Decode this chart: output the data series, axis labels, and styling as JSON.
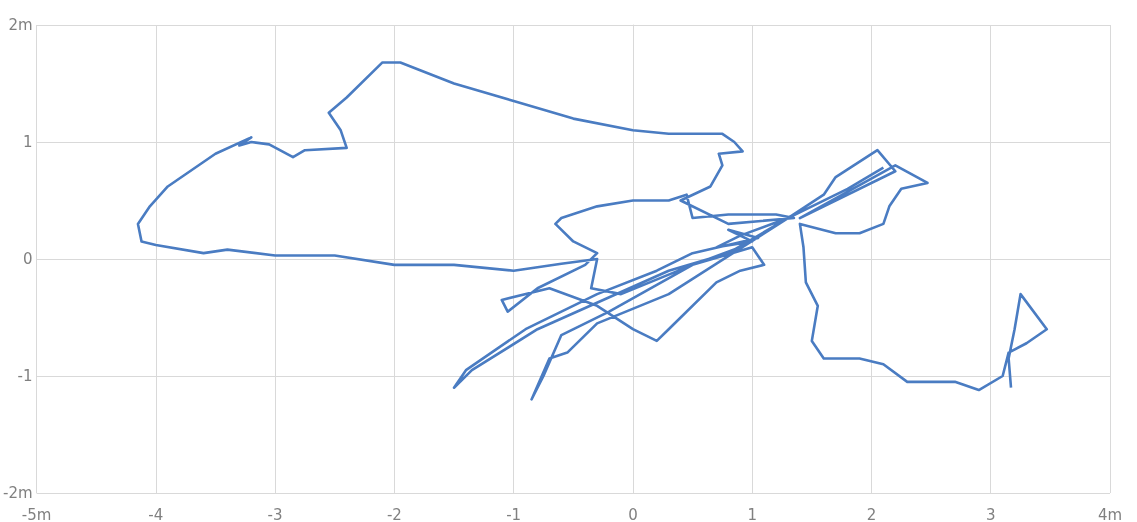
{
  "chart_data": {
    "type": "line",
    "grid": true,
    "xlim": [
      -5,
      4
    ],
    "ylim": [
      -2,
      2
    ],
    "xticks": [
      {
        "value": -5,
        "label": "-5m"
      },
      -4,
      -3,
      -2,
      -1,
      0,
      1,
      2,
      3,
      {
        "value": 4,
        "label": "4m"
      }
    ],
    "yticks": [
      {
        "value": -2,
        "label": "-2m"
      },
      -1,
      0,
      1,
      {
        "value": 2,
        "label": "2m"
      }
    ],
    "series": [
      {
        "color": "#4a7cc2",
        "x": [
          3.17,
          3.15,
          3.2,
          3.25,
          3.47,
          3.3,
          3.15,
          3.1,
          2.9,
          2.7,
          2.3,
          2.1,
          1.9,
          1.6,
          1.5,
          1.55,
          1.45,
          1.43,
          1.4,
          1.7,
          1.9,
          2.1,
          2.15,
          2.25,
          2.47,
          2.2,
          1.4,
          2.2,
          2.05,
          1.7,
          1.6,
          1.3,
          0.9,
          0.7,
          1.0,
          0.8,
          1.05,
          0.5,
          0.2,
          -0.3,
          -0.9,
          -1.4,
          -1.5,
          -1.35,
          -0.8,
          0.3,
          0.8,
          1.3,
          0.3,
          -0.3,
          -0.55,
          -0.7,
          -0.85,
          -0.75,
          -0.6,
          -0.2,
          0.5,
          1.0,
          1.1,
          0.9,
          0.7,
          0.3,
          0.2,
          0.0,
          -0.3,
          -0.7,
          -1.1,
          -1.05,
          -0.8,
          -0.4,
          -0.3,
          -0.5,
          -0.65,
          -0.6,
          -0.3,
          0.0,
          0.3,
          0.45,
          0.5,
          0.8,
          1.2,
          1.35,
          0.8,
          0.4,
          0.65,
          0.75,
          0.72,
          0.92,
          0.85,
          0.75,
          0.3,
          0.0,
          -0.5,
          -1.0,
          -1.5,
          -1.95,
          -2.1,
          -2.4,
          -2.55,
          -2.45,
          -2.4,
          -2.75,
          -2.85,
          -3.05,
          -3.2,
          -3.3,
          -3.2,
          -3.5,
          -3.9,
          -4.05,
          -4.15,
          -4.12,
          -4.0,
          -3.6,
          -3.4,
          -3.0,
          -2.5,
          -2.0,
          -1.5,
          -1.0,
          -0.6,
          -0.3,
          -0.35,
          -0.1,
          0.5,
          0.9,
          1.3,
          1.8,
          2.1
        ],
        "values": [
          -1.1,
          -0.85,
          -0.6,
          -0.3,
          -0.6,
          -0.72,
          -0.8,
          -1.0,
          -1.12,
          -1.05,
          -1.05,
          -0.9,
          -0.85,
          -0.85,
          -0.7,
          -0.4,
          -0.2,
          0.1,
          0.3,
          0.22,
          0.22,
          0.3,
          0.45,
          0.6,
          0.65,
          0.8,
          0.35,
          0.75,
          0.93,
          0.7,
          0.55,
          0.35,
          0.2,
          0.1,
          0.15,
          0.25,
          0.18,
          0.05,
          -0.1,
          -0.3,
          -0.6,
          -0.95,
          -1.1,
          -0.95,
          -0.6,
          -0.1,
          0.05,
          0.35,
          -0.3,
          -0.55,
          -0.8,
          -0.85,
          -1.2,
          -1.0,
          -0.65,
          -0.45,
          -0.05,
          0.1,
          -0.05,
          -0.1,
          -0.2,
          -0.6,
          -0.7,
          -0.6,
          -0.4,
          -0.25,
          -0.35,
          -0.45,
          -0.25,
          -0.05,
          0.05,
          0.15,
          0.3,
          0.35,
          0.45,
          0.5,
          0.5,
          0.55,
          0.35,
          0.38,
          0.38,
          0.35,
          0.3,
          0.5,
          0.62,
          0.8,
          0.9,
          0.92,
          1.0,
          1.07,
          1.07,
          1.1,
          1.2,
          1.35,
          1.5,
          1.68,
          1.68,
          1.38,
          1.25,
          1.1,
          0.95,
          0.93,
          0.87,
          0.98,
          1.0,
          0.97,
          1.04,
          0.9,
          0.62,
          0.45,
          0.3,
          0.15,
          0.12,
          0.05,
          0.08,
          0.03,
          0.03,
          -0.05,
          -0.05,
          -0.1,
          -0.04,
          0.0,
          -0.25,
          -0.3,
          -0.05,
          0.1,
          0.35,
          0.6,
          0.78
        ]
      }
    ]
  }
}
